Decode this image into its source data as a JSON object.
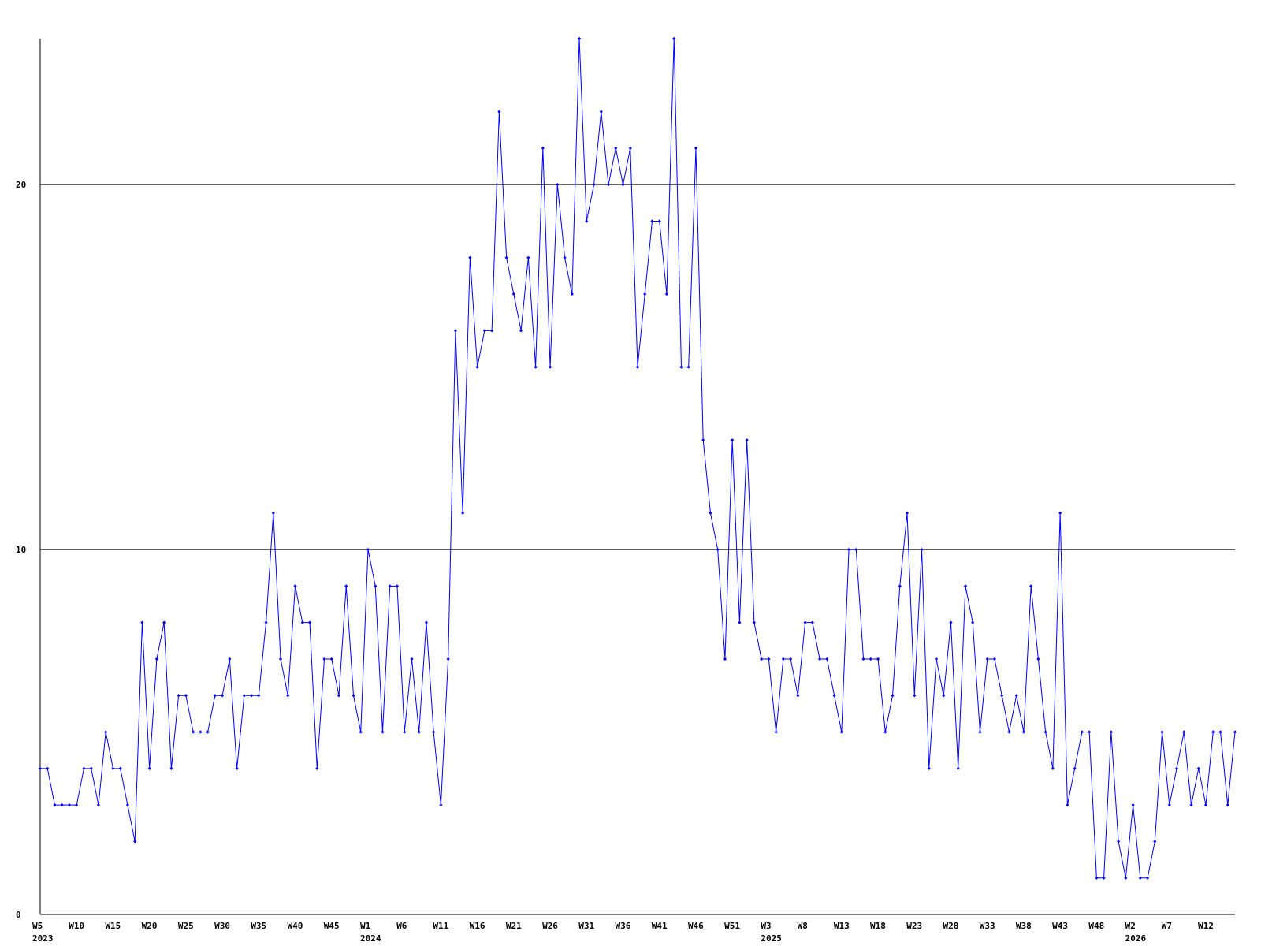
{
  "chart_data": {
    "type": "line",
    "title": "",
    "xlabel": "",
    "ylabel": "",
    "ylim": [
      0,
      24
    ],
    "y_ticks": [
      0,
      10,
      20
    ],
    "grid": "horizontal at labeled y ticks",
    "colors": {
      "series": "#0000ff",
      "axis": "#000000",
      "grid": "#000000",
      "background": "#ffffff"
    },
    "x_week_labels": [
      "W5",
      "W10",
      "W15",
      "W20",
      "W25",
      "W30",
      "W35",
      "W40",
      "W45",
      "W1",
      "W6",
      "W11",
      "W16",
      "W21",
      "W26",
      "W31",
      "W36",
      "W41",
      "W46",
      "W51",
      "W3",
      "W8",
      "W13",
      "W18",
      "W23",
      "W28",
      "W33",
      "W38",
      "W43",
      "W48",
      "W2",
      "W7",
      "W12"
    ],
    "x_year_labels": [
      "2023",
      "2024",
      "2025",
      "2026"
    ],
    "series": [
      {
        "values": [
          4,
          4,
          3,
          3,
          3,
          3,
          4,
          4,
          3,
          5,
          4,
          4,
          3,
          2,
          8,
          4,
          7,
          8,
          4,
          6,
          6,
          5,
          5,
          5,
          6,
          6,
          7,
          4,
          6,
          6,
          6,
          8,
          11,
          7,
          6,
          9,
          8,
          8,
          4,
          7,
          7,
          6,
          9,
          6,
          5,
          10,
          9,
          5,
          9,
          9,
          5,
          7,
          5,
          8,
          5,
          3,
          7,
          16,
          11,
          18,
          15,
          16,
          16,
          22,
          18,
          17,
          16,
          18,
          15,
          21,
          15,
          20,
          18,
          17,
          24,
          19,
          20,
          22,
          20,
          21,
          20,
          21,
          15,
          17,
          19,
          19,
          17,
          24,
          15,
          15,
          21,
          13,
          11,
          10,
          7,
          13,
          8,
          13,
          8,
          7,
          7,
          5,
          7,
          7,
          6,
          8,
          8,
          7,
          7,
          6,
          5,
          10,
          10,
          7,
          7,
          7,
          5,
          6,
          9,
          11,
          6,
          10,
          4,
          7,
          6,
          8,
          4,
          9,
          8,
          5,
          7,
          7,
          6,
          5,
          6,
          5,
          9,
          7,
          5,
          4,
          11,
          3,
          4,
          5,
          5,
          1,
          1,
          5,
          2,
          1,
          3,
          1,
          1,
          2,
          5,
          3,
          4,
          5,
          3,
          4,
          3,
          5,
          5,
          3,
          5
        ]
      }
    ]
  }
}
